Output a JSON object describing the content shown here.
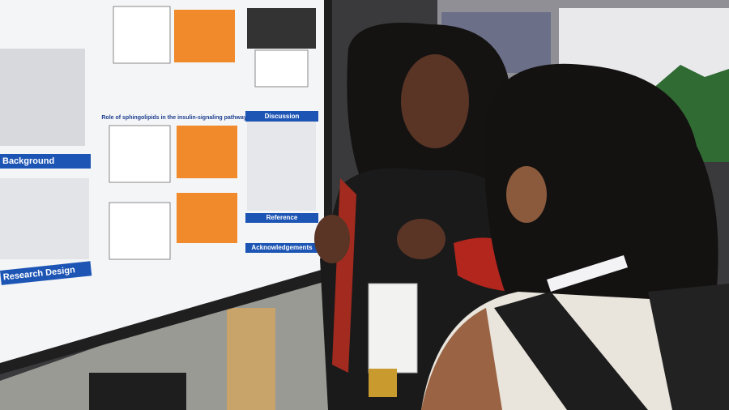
{
  "poster": {
    "sections": [
      "Background",
      "Research Design",
      "Discussion",
      "Reference",
      "Acknowledgements"
    ],
    "subheading": "Role of sphingolipids in the insulin-signaling pathway"
  }
}
